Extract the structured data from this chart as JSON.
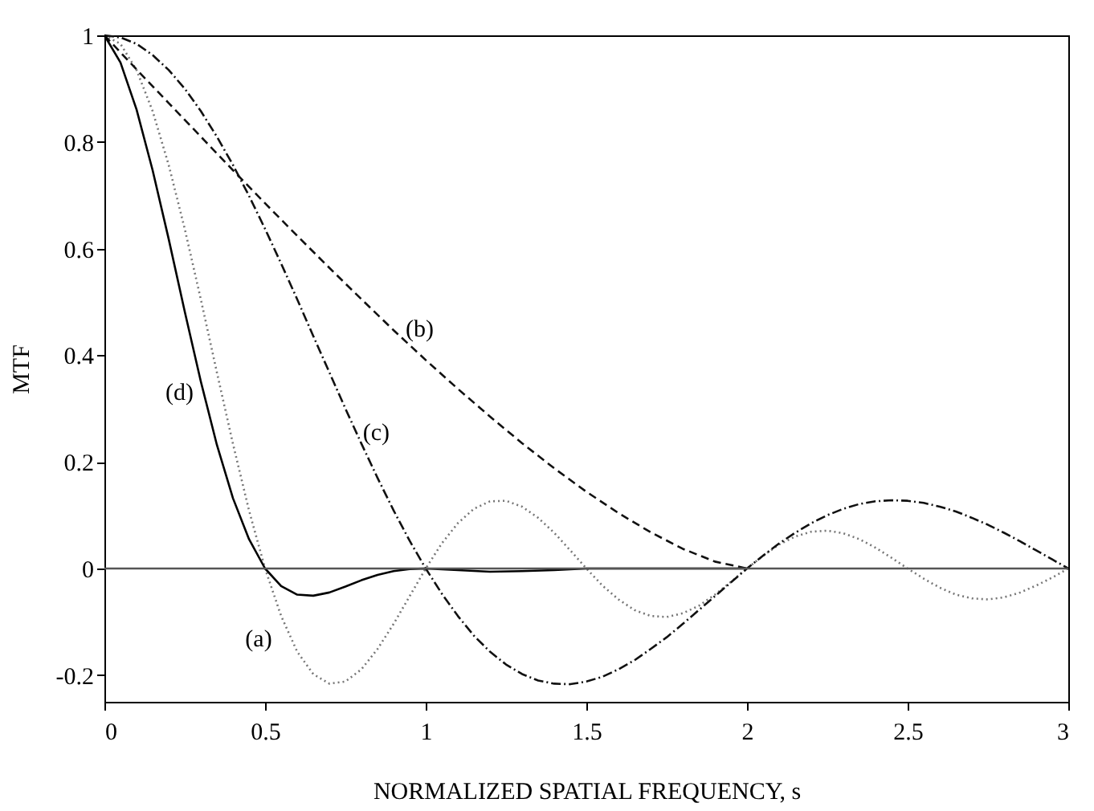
{
  "chart_data": {
    "type": "line",
    "xlabel": "NORMALIZED SPATIAL FREQUENCY, s",
    "ylabel": "MTF",
    "xlim": [
      0,
      3
    ],
    "ylim": [
      -0.25,
      1
    ],
    "xticks": [
      0,
      0.5,
      1,
      1.5,
      2,
      2.5,
      3
    ],
    "yticks": [
      -0.2,
      0,
      0.2,
      0.4,
      0.6,
      0.8,
      1
    ],
    "grid": false,
    "marker": "none",
    "series": [
      {
        "color": "#777777",
        "line_style": "dotted",
        "x": [
          0,
          0.05,
          0.1,
          0.15,
          0.2,
          0.25,
          0.3,
          0.35,
          0.4,
          0.45,
          0.5,
          0.55,
          0.6,
          0.65,
          0.7,
          0.75,
          0.8,
          0.85,
          0.9,
          0.95,
          1,
          1.05,
          1.1,
          1.15,
          1.2,
          1.25,
          1.3,
          1.35,
          1.4,
          1.45,
          1.5,
          1.55,
          1.6,
          1.65,
          1.7,
          1.75,
          1.8,
          1.85,
          1.9,
          1.95,
          2,
          2.05,
          2.1,
          2.15,
          2.2,
          2.25,
          2.3,
          2.35,
          2.4,
          2.45,
          2.5,
          2.55,
          2.6,
          2.65,
          2.7,
          2.75,
          2.8,
          2.85,
          2.9,
          2.95,
          3
        ],
        "values": [
          1,
          0.984,
          0.935,
          0.858,
          0.757,
          0.637,
          0.505,
          0.368,
          0.234,
          0.109,
          0,
          -0.089,
          -0.156,
          -0.198,
          -0.216,
          -0.212,
          -0.189,
          -0.151,
          -0.104,
          -0.052,
          0,
          0.047,
          0.085,
          0.112,
          0.126,
          0.127,
          0.116,
          0.095,
          0.067,
          0.034,
          0,
          -0.032,
          -0.058,
          -0.078,
          -0.089,
          -0.091,
          -0.084,
          -0.07,
          -0.049,
          -0.025,
          0,
          0.024,
          0.045,
          0.06,
          0.069,
          0.071,
          0.066,
          0.055,
          0.039,
          0.02,
          0,
          -0.019,
          -0.036,
          -0.049,
          -0.056,
          -0.058,
          -0.054,
          -0.045,
          -0.032,
          -0.017,
          0
        ]
      },
      {
        "color": "#111111",
        "line_style": "dashed",
        "x": [
          0,
          0.1,
          0.2,
          0.3,
          0.4,
          0.5,
          0.6,
          0.7,
          0.8,
          0.9,
          1,
          1.1,
          1.2,
          1.3,
          1.4,
          1.5,
          1.6,
          1.7,
          1.8,
          1.9,
          2
        ],
        "values": [
          1,
          0.936,
          0.873,
          0.81,
          0.747,
          0.685,
          0.624,
          0.564,
          0.505,
          0.447,
          0.391,
          0.337,
          0.285,
          0.235,
          0.188,
          0.144,
          0.104,
          0.068,
          0.037,
          0.013,
          0
        ]
      },
      {
        "color": "#111111",
        "line_style": "dashdot",
        "x": [
          0,
          0.05,
          0.1,
          0.15,
          0.2,
          0.25,
          0.3,
          0.35,
          0.4,
          0.45,
          0.5,
          0.55,
          0.6,
          0.65,
          0.7,
          0.75,
          0.8,
          0.85,
          0.9,
          0.95,
          1,
          1.05,
          1.1,
          1.15,
          1.2,
          1.25,
          1.3,
          1.35,
          1.4,
          1.45,
          1.5,
          1.55,
          1.6,
          1.65,
          1.7,
          1.75,
          1.8,
          1.85,
          1.9,
          1.95,
          2,
          2.05,
          2.1,
          2.15,
          2.2,
          2.25,
          2.3,
          2.35,
          2.4,
          2.45,
          2.5,
          2.55,
          2.6,
          2.65,
          2.7,
          2.75,
          2.8,
          2.85,
          2.9,
          2.95,
          3
        ],
        "values": [
          1,
          0.996,
          0.984,
          0.963,
          0.935,
          0.9,
          0.858,
          0.81,
          0.757,
          0.699,
          0.637,
          0.572,
          0.505,
          0.436,
          0.368,
          0.3,
          0.234,
          0.17,
          0.109,
          0.052,
          0,
          -0.047,
          -0.089,
          -0.126,
          -0.156,
          -0.18,
          -0.198,
          -0.21,
          -0.216,
          -0.217,
          -0.212,
          -0.203,
          -0.189,
          -0.172,
          -0.151,
          -0.129,
          -0.104,
          -0.078,
          -0.052,
          -0.026,
          0,
          0.024,
          0.047,
          0.067,
          0.085,
          0.1,
          0.112,
          0.121,
          0.126,
          0.128,
          0.127,
          0.123,
          0.116,
          0.107,
          0.095,
          0.082,
          0.067,
          0.051,
          0.034,
          0.017,
          0
        ]
      },
      {
        "color": "#000000",
        "line_style": "solid",
        "x": [
          0,
          0.05,
          0.1,
          0.15,
          0.2,
          0.25,
          0.3,
          0.35,
          0.4,
          0.45,
          0.5,
          0.55,
          0.6,
          0.65,
          0.7,
          0.75,
          0.8,
          0.85,
          0.9,
          0.95,
          1,
          1.1,
          1.2,
          1.3,
          1.4,
          1.5,
          2
        ],
        "values": [
          1,
          0.949,
          0.861,
          0.747,
          0.618,
          0.482,
          0.351,
          0.232,
          0.132,
          0.055,
          0,
          -0.033,
          -0.049,
          -0.051,
          -0.045,
          -0.034,
          -0.022,
          -0.012,
          -0.005,
          -0.001,
          0,
          -0.003,
          -0.006,
          -0.005,
          -0.003,
          0,
          0
        ]
      }
    ],
    "ref_lines": [
      {
        "axis": "y",
        "value": 0,
        "color": "#555555",
        "line_style": "solid"
      }
    ],
    "annotations": [
      "(a)",
      "(b)",
      "(c)",
      "(d)"
    ]
  }
}
